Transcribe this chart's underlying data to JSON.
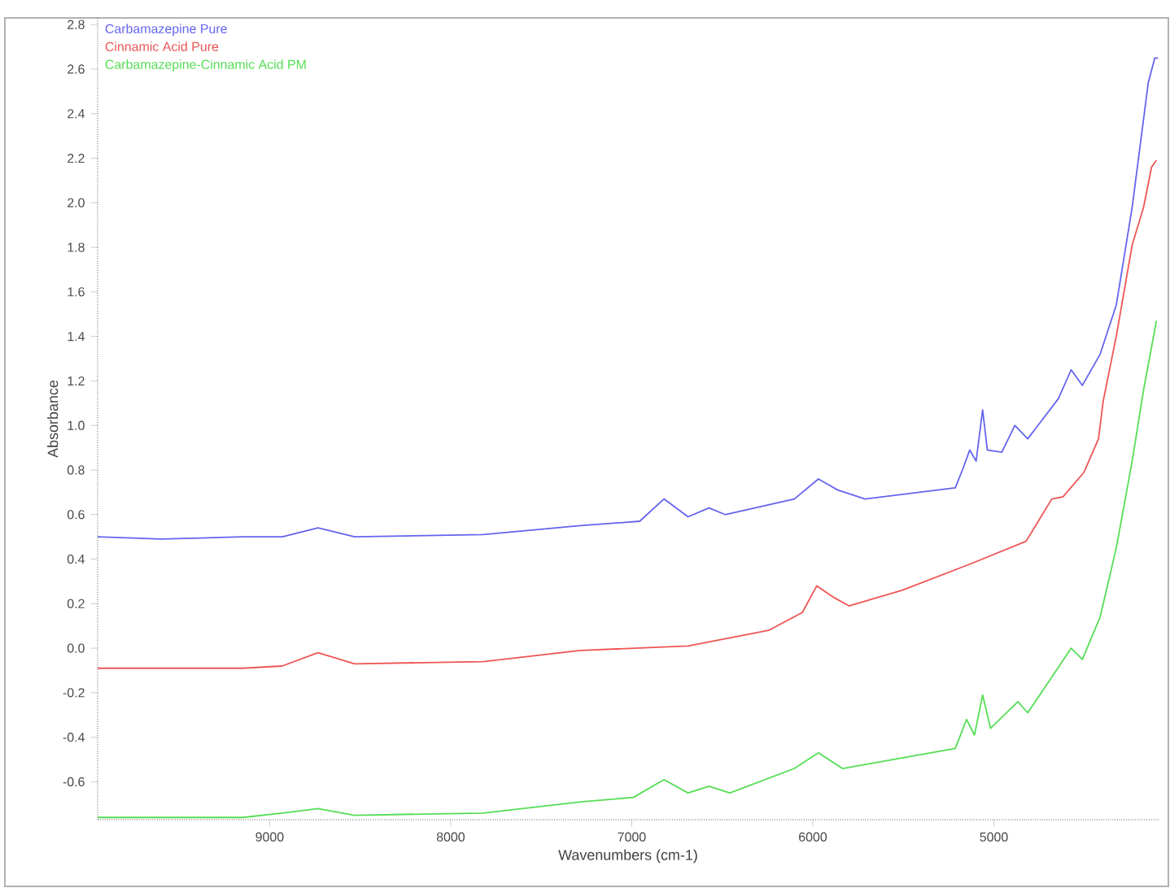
{
  "chart_data": {
    "type": "line",
    "xlabel": "Wavenumbers (cm-1)",
    "ylabel": "Absorbance",
    "xlim": [
      9950,
      4090
    ],
    "ylim": [
      -0.77,
      2.83
    ],
    "xticks": [
      9000,
      8000,
      7000,
      6000,
      5000
    ],
    "yticks": [
      {
        "value": -0.6,
        "label": "-0.6"
      },
      {
        "value": -0.4,
        "label": "-0.4"
      },
      {
        "value": -0.2,
        "label": "-0.2"
      },
      {
        "value": 0,
        "label": "0.0"
      },
      {
        "value": 0.2,
        "label": "0.2"
      },
      {
        "value": 0.4,
        "label": "0.4"
      },
      {
        "value": 0.6,
        "label": "0.6"
      },
      {
        "value": 0.8,
        "label": "0.8"
      },
      {
        "value": 1.0,
        "label": "1.0"
      },
      {
        "value": 1.2,
        "label": "1.2"
      },
      {
        "value": 1.4,
        "label": "1.4"
      },
      {
        "value": 1.6,
        "label": "1.6"
      },
      {
        "value": 1.8,
        "label": "1.8"
      },
      {
        "value": 2.0,
        "label": "2.0"
      },
      {
        "value": 2.2,
        "label": "2.2"
      },
      {
        "value": 2.4,
        "label": "2.4"
      },
      {
        "value": 2.6,
        "label": "2.6"
      },
      {
        "value": 2.8,
        "label": "2.8"
      }
    ],
    "legend": "top left",
    "grid": false,
    "marker": "none",
    "line_style": "solid",
    "series": [
      {
        "name": "Carbamazepine Pure",
        "color": "#6464ee",
        "x": [
          9950,
          9600,
          9150,
          8930,
          8733,
          8530,
          7820,
          7284,
          6956,
          6822,
          6689,
          6573,
          6484,
          6102,
          5969,
          5862,
          5711,
          5213,
          5169,
          5133,
          5098,
          5062,
          5036,
          4956,
          4884,
          4813,
          4644,
          4573,
          4511,
          4413,
          4324,
          4236,
          4147,
          4111,
          4093
        ],
        "values": [
          0.5,
          0.49,
          0.5,
          0.5,
          0.54,
          0.5,
          0.51,
          0.55,
          0.57,
          0.67,
          0.59,
          0.63,
          0.6,
          0.67,
          0.76,
          0.71,
          0.67,
          0.72,
          0.81,
          0.89,
          0.84,
          1.07,
          0.89,
          0.88,
          1.0,
          0.94,
          1.12,
          1.25,
          1.18,
          1.32,
          1.54,
          1.98,
          2.54,
          2.65,
          2.65
        ]
      },
      {
        "name": "Cinnamic Acid Pure",
        "color": "#ee5555",
        "x": [
          9950,
          9150,
          8930,
          8733,
          8530,
          7820,
          7284,
          6689,
          6244,
          6058,
          5978,
          5889,
          5800,
          5507,
          5124,
          4822,
          4680,
          4618,
          4502,
          4422,
          4396,
          4324,
          4236,
          4173,
          4129,
          4102
        ],
        "values": [
          -0.09,
          -0.09,
          -0.08,
          -0.02,
          -0.07,
          -0.06,
          -0.01,
          0.01,
          0.08,
          0.16,
          0.28,
          0.23,
          0.19,
          0.26,
          0.38,
          0.48,
          0.67,
          0.68,
          0.79,
          0.94,
          1.11,
          1.4,
          1.81,
          1.98,
          2.16,
          2.19
        ]
      },
      {
        "name": "Carbamazepine-Cinnamic Acid PM",
        "color": "#55dd55",
        "x": [
          9950,
          9150,
          8930,
          8733,
          8530,
          7820,
          7284,
          6991,
          6822,
          6689,
          6573,
          6458,
          6102,
          5969,
          5836,
          5213,
          5151,
          5107,
          5062,
          5018,
          4867,
          4813,
          4680,
          4573,
          4511,
          4413,
          4324,
          4236,
          4173,
          4102
        ],
        "values": [
          -0.76,
          -0.76,
          -0.74,
          -0.72,
          -0.75,
          -0.74,
          -0.69,
          -0.67,
          -0.59,
          -0.65,
          -0.62,
          -0.65,
          -0.54,
          -0.47,
          -0.54,
          -0.45,
          -0.32,
          -0.39,
          -0.21,
          -0.36,
          -0.24,
          -0.29,
          -0.13,
          0.0,
          -0.05,
          0.14,
          0.45,
          0.84,
          1.16,
          1.47
        ]
      }
    ]
  }
}
